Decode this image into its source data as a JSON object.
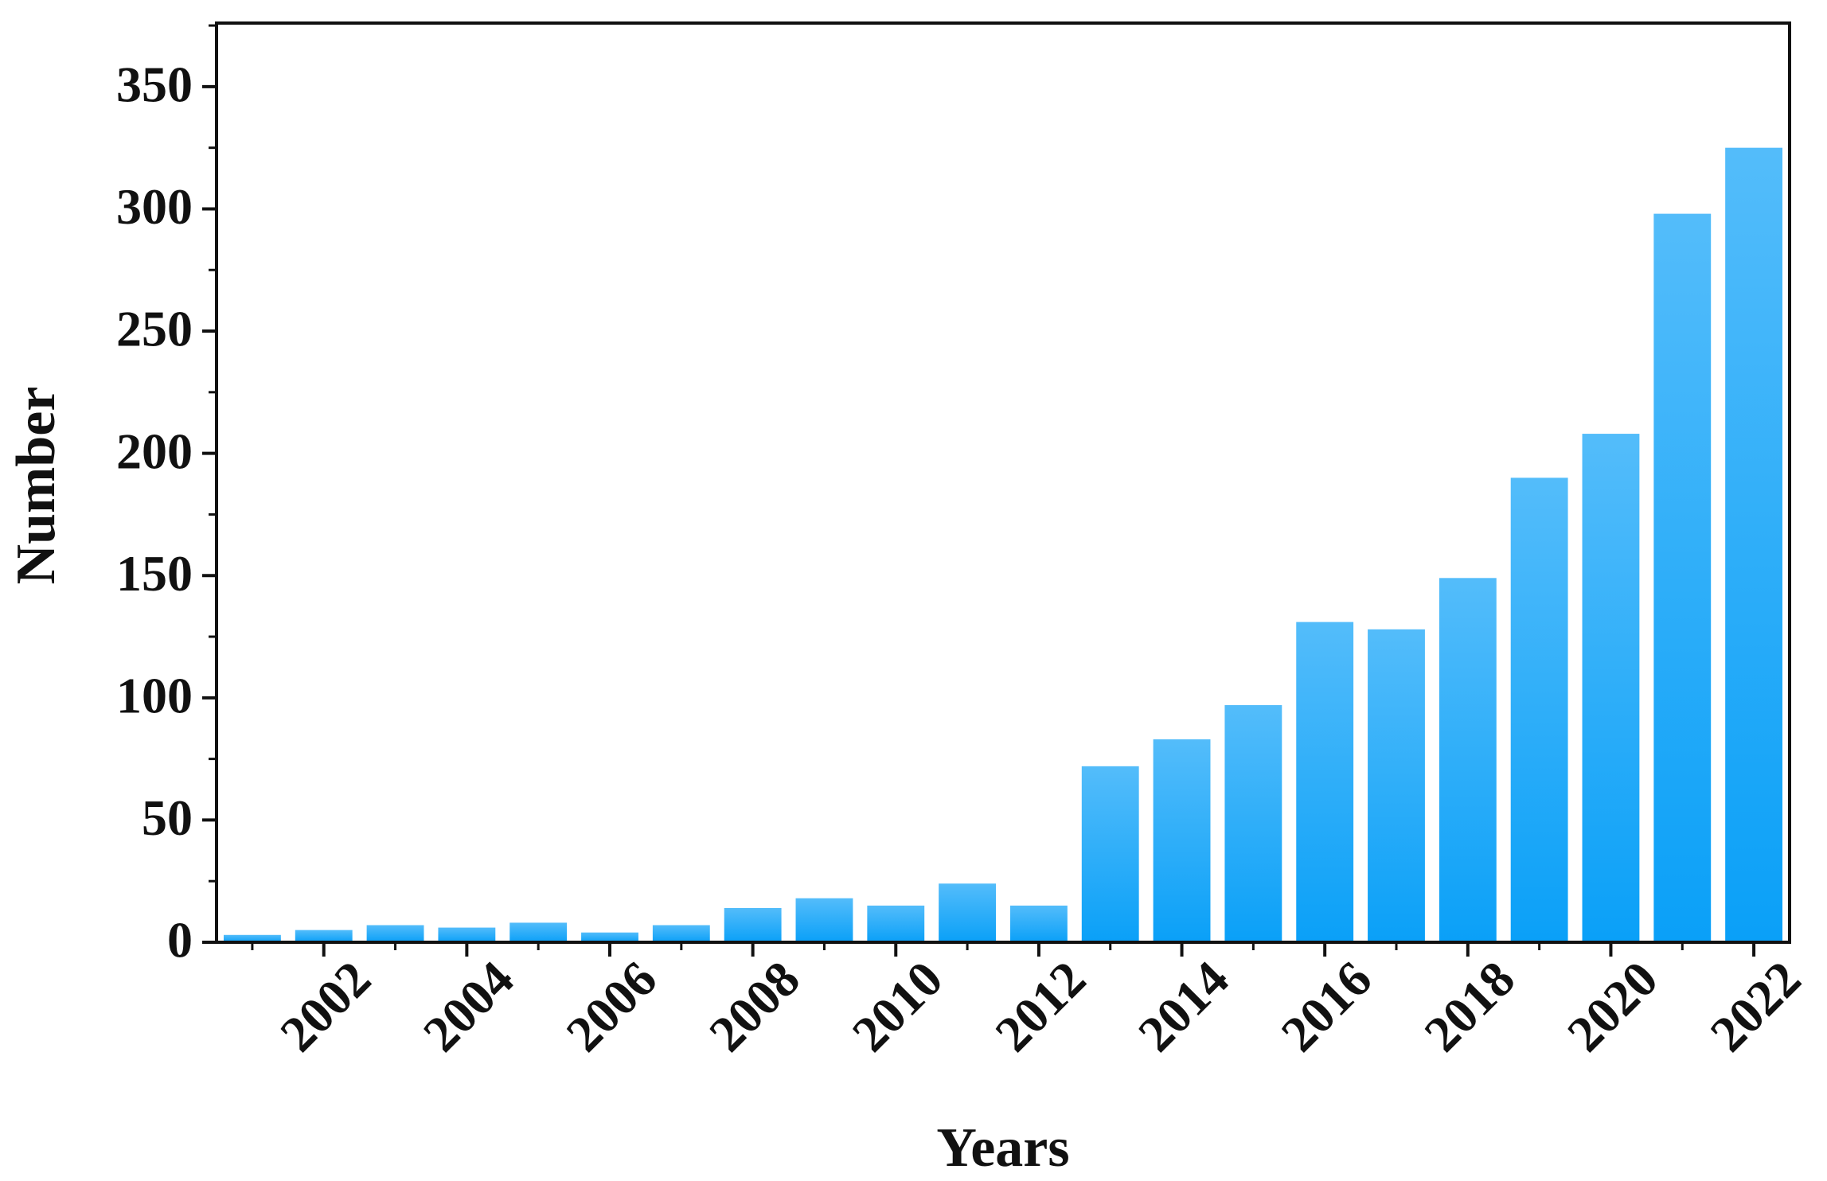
{
  "chart_data": {
    "type": "bar",
    "x_label": "Years",
    "y_label": "Number",
    "categories": [
      null,
      "2002",
      null,
      "2004",
      null,
      "2006",
      null,
      "2008",
      null,
      "2010",
      null,
      "2012",
      null,
      "2014",
      null,
      "2016",
      null,
      "2018",
      null,
      "2020",
      null,
      "2022"
    ],
    "values": [
      3,
      5,
      7,
      6,
      8,
      4,
      7,
      14,
      18,
      15,
      24,
      15,
      72,
      83,
      97,
      131,
      128,
      149,
      190,
      208,
      298,
      325
    ],
    "color": "#0aa0f8",
    "ylim": [
      0,
      376
    ],
    "yticks": [
      0,
      50,
      100,
      150,
      200,
      250,
      300,
      350
    ],
    "grid": false
  }
}
